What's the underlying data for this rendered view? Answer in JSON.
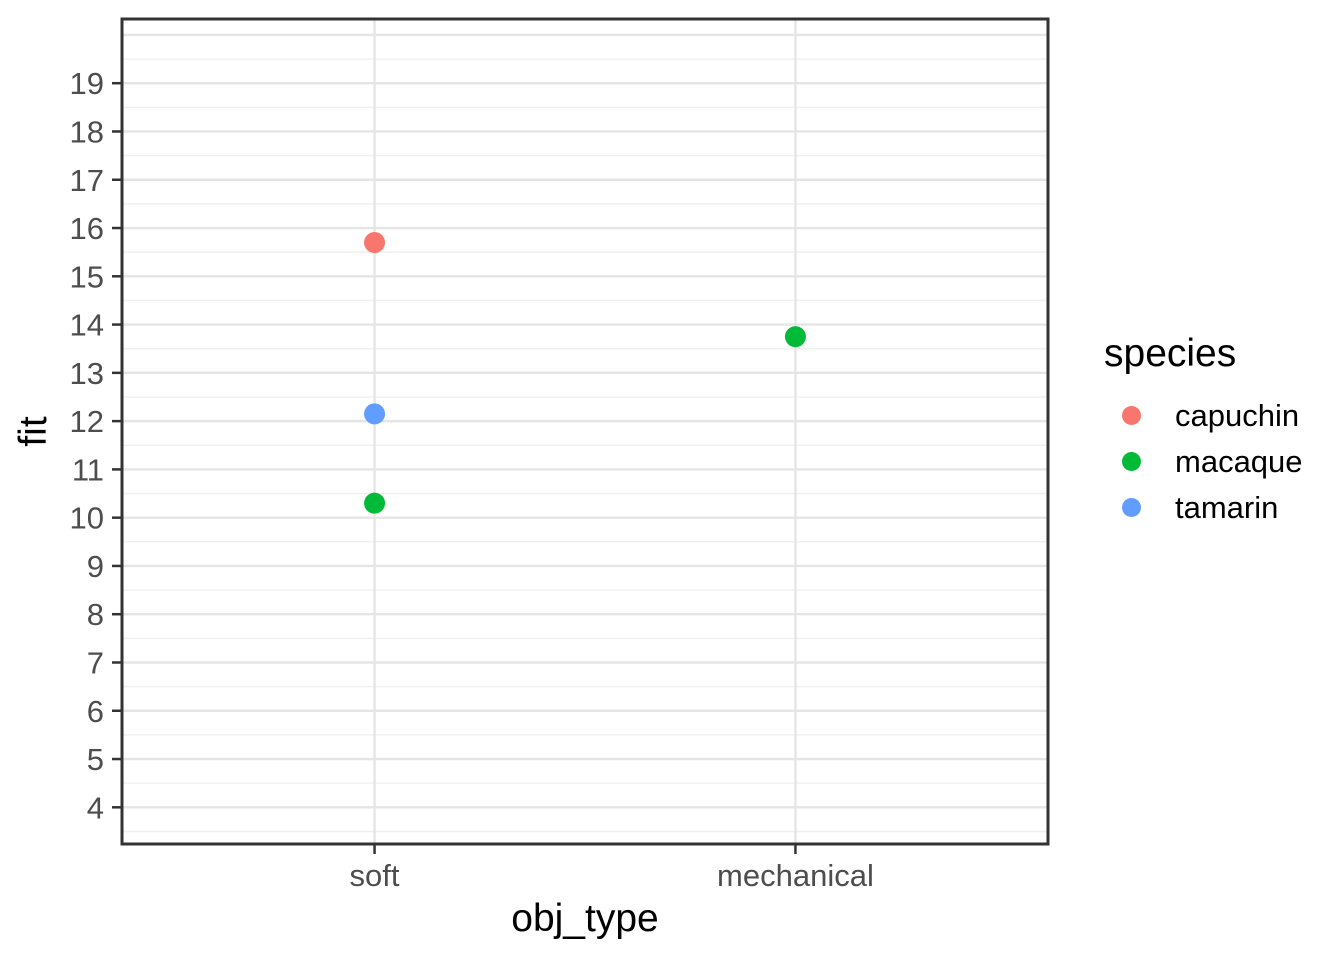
{
  "chart_data": {
    "type": "scatter",
    "title": "",
    "xlabel": "obj_type",
    "ylabel": "fit",
    "legend_title": "species",
    "legend_position": "right",
    "grid": true,
    "x_categories": [
      "soft",
      "mechanical"
    ],
    "y_ticks": [
      4,
      5,
      6,
      7,
      8,
      9,
      10,
      11,
      12,
      13,
      14,
      15,
      16,
      17,
      18,
      19
    ],
    "y_major_gridlines": [
      4,
      5,
      6,
      7,
      8,
      9,
      10,
      11,
      12,
      13,
      14,
      15,
      16,
      17,
      18,
      19,
      20
    ],
    "y_minor_gridlines": [
      3.5,
      4.5,
      5.5,
      6.5,
      7.5,
      8.5,
      9.5,
      10.5,
      11.5,
      12.5,
      13.5,
      14.5,
      15.5,
      16.5,
      17.5,
      18.5,
      19.5
    ],
    "ylim": [
      3.24,
      20.33
    ],
    "series": [
      {
        "name": "capuchin",
        "color": "#F8766D",
        "points": [
          {
            "x": "soft",
            "y": 15.7
          }
        ]
      },
      {
        "name": "macaque",
        "color": "#00BA38",
        "points": [
          {
            "x": "soft",
            "y": 10.3
          },
          {
            "x": "mechanical",
            "y": 13.75
          }
        ]
      },
      {
        "name": "tamarin",
        "color": "#619CFF",
        "points": [
          {
            "x": "soft",
            "y": 12.15
          }
        ]
      }
    ]
  },
  "colors": {
    "background": "#FFFFFF",
    "panel_background": "#FFFFFF",
    "panel_border": "#333333",
    "grid_major": "#E5E5E5",
    "grid_minor": "#F0F0F0",
    "tick_mark": "#333333",
    "tick_label": "#4D4D4D",
    "axis_title": "#000000"
  }
}
